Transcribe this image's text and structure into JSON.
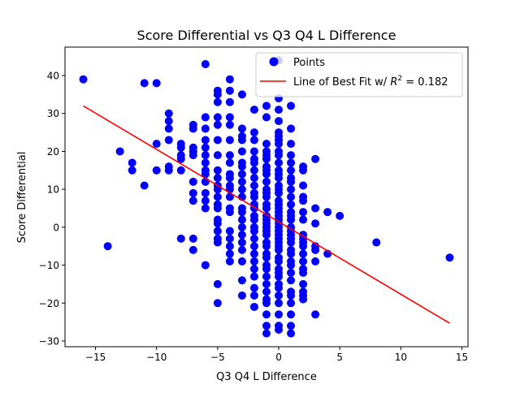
{
  "chart_data": {
    "type": "scatter",
    "title": "Score Differential vs Q3 Q4 L Difference",
    "xlabel": "Q3 Q4 L Difference",
    "ylabel": "Score Differential",
    "xlim": [
      -17.5,
      15.5
    ],
    "ylim": [
      -31.5,
      47.5
    ],
    "xticks": [
      -15,
      -10,
      -5,
      0,
      5,
      10,
      15
    ],
    "yticks": [
      -30,
      -20,
      -10,
      0,
      10,
      20,
      30,
      40
    ],
    "grid": false,
    "legend_position": "top-right",
    "legend": {
      "points_label": "Points",
      "line_label_prefix": "Line of Best Fit w/ ",
      "r2_symbol": "R",
      "r2_superscript": "2",
      "r2_suffix": " = 0.182"
    },
    "series": [
      {
        "name": "Points",
        "color": "#0000ff",
        "points": [
          [
            -16,
            39
          ],
          [
            -14,
            -5
          ],
          [
            -13,
            20
          ],
          [
            -12,
            17
          ],
          [
            -12,
            15
          ],
          [
            -11,
            38
          ],
          [
            -11,
            11
          ],
          [
            -10,
            38
          ],
          [
            -10,
            22
          ],
          [
            -10,
            15
          ],
          [
            -9,
            30
          ],
          [
            -9,
            28
          ],
          [
            -9,
            26
          ],
          [
            -9,
            23
          ],
          [
            -9,
            16
          ],
          [
            -9,
            15
          ],
          [
            -8,
            22
          ],
          [
            -8,
            21
          ],
          [
            -8,
            19
          ],
          [
            -8,
            18
          ],
          [
            -8,
            15
          ],
          [
            -8,
            -3
          ],
          [
            -7,
            27
          ],
          [
            -7,
            26
          ],
          [
            -7,
            21
          ],
          [
            -7,
            20
          ],
          [
            -7,
            19
          ],
          [
            -7,
            12
          ],
          [
            -7,
            9
          ],
          [
            -7,
            7
          ],
          [
            -7,
            -3
          ],
          [
            -7,
            -6
          ],
          [
            -6,
            43
          ],
          [
            -6,
            29
          ],
          [
            -6,
            26
          ],
          [
            -6,
            23
          ],
          [
            -6,
            21
          ],
          [
            -6,
            19
          ],
          [
            -6,
            17
          ],
          [
            -6,
            15
          ],
          [
            -6,
            14
          ],
          [
            -6,
            12
          ],
          [
            -6,
            9
          ],
          [
            -6,
            7
          ],
          [
            -6,
            5
          ],
          [
            -6,
            -10
          ],
          [
            -5,
            36
          ],
          [
            -5,
            35
          ],
          [
            -5,
            33
          ],
          [
            -5,
            29
          ],
          [
            -5,
            27
          ],
          [
            -5,
            23
          ],
          [
            -5,
            19
          ],
          [
            -5,
            15
          ],
          [
            -5,
            13
          ],
          [
            -5,
            11
          ],
          [
            -5,
            10
          ],
          [
            -5,
            8
          ],
          [
            -5,
            6
          ],
          [
            -5,
            5
          ],
          [
            -5,
            2
          ],
          [
            -5,
            1
          ],
          [
            -5,
            -1
          ],
          [
            -5,
            -3
          ],
          [
            -5,
            -4
          ],
          [
            -5,
            -15
          ],
          [
            -5,
            -20
          ],
          [
            -4,
            39
          ],
          [
            -4,
            36
          ],
          [
            -4,
            33
          ],
          [
            -4,
            29
          ],
          [
            -4,
            27
          ],
          [
            -4,
            23
          ],
          [
            -4,
            19
          ],
          [
            -4,
            17
          ],
          [
            -4,
            14
          ],
          [
            -4,
            13
          ],
          [
            -4,
            11
          ],
          [
            -4,
            10
          ],
          [
            -4,
            8
          ],
          [
            -4,
            5
          ],
          [
            -4,
            4
          ],
          [
            -4,
            -1
          ],
          [
            -4,
            -3
          ],
          [
            -4,
            -5
          ],
          [
            -4,
            -7
          ],
          [
            -4,
            -9
          ],
          [
            -3,
            35
          ],
          [
            -3,
            26
          ],
          [
            -3,
            24
          ],
          [
            -3,
            23
          ],
          [
            -3,
            20
          ],
          [
            -3,
            17
          ],
          [
            -3,
            16
          ],
          [
            -3,
            14
          ],
          [
            -3,
            12
          ],
          [
            -3,
            10
          ],
          [
            -3,
            8
          ],
          [
            -3,
            5
          ],
          [
            -3,
            4
          ],
          [
            -3,
            2
          ],
          [
            -3,
            0
          ],
          [
            -3,
            -2
          ],
          [
            -3,
            -4
          ],
          [
            -3,
            -6
          ],
          [
            -3,
            -9
          ],
          [
            -3,
            -14
          ],
          [
            -3,
            -18
          ],
          [
            -2,
            31
          ],
          [
            -2,
            25
          ],
          [
            -2,
            23
          ],
          [
            -2,
            20
          ],
          [
            -2,
            18
          ],
          [
            -2,
            17
          ],
          [
            -2,
            15
          ],
          [
            -2,
            13
          ],
          [
            -2,
            11
          ],
          [
            -2,
            9
          ],
          [
            -2,
            8
          ],
          [
            -2,
            6
          ],
          [
            -2,
            5
          ],
          [
            -2,
            3
          ],
          [
            -2,
            2
          ],
          [
            -2,
            0
          ],
          [
            -2,
            -1
          ],
          [
            -2,
            -3
          ],
          [
            -2,
            -5
          ],
          [
            -2,
            -7
          ],
          [
            -2,
            -9
          ],
          [
            -2,
            -11
          ],
          [
            -2,
            -13
          ],
          [
            -2,
            -16
          ],
          [
            -2,
            -18
          ],
          [
            -2,
            -21
          ],
          [
            -1,
            32
          ],
          [
            -1,
            29
          ],
          [
            -1,
            22
          ],
          [
            -1,
            20
          ],
          [
            -1,
            19
          ],
          [
            -1,
            18
          ],
          [
            -1,
            16
          ],
          [
            -1,
            15
          ],
          [
            -1,
            14
          ],
          [
            -1,
            12
          ],
          [
            -1,
            10
          ],
          [
            -1,
            9
          ],
          [
            -1,
            8
          ],
          [
            -1,
            6
          ],
          [
            -1,
            5
          ],
          [
            -1,
            3
          ],
          [
            -1,
            2
          ],
          [
            -1,
            1
          ],
          [
            -1,
            0
          ],
          [
            -1,
            -1
          ],
          [
            -1,
            -2
          ],
          [
            -1,
            -4
          ],
          [
            -1,
            -5
          ],
          [
            -1,
            -7
          ],
          [
            -1,
            -8
          ],
          [
            -1,
            -10
          ],
          [
            -1,
            -11
          ],
          [
            -1,
            -13
          ],
          [
            -1,
            -15
          ],
          [
            -1,
            -17
          ],
          [
            -1,
            -19
          ],
          [
            -1,
            -20
          ],
          [
            -1,
            -23
          ],
          [
            -1,
            -26
          ],
          [
            -1,
            -28
          ],
          [
            0,
            44
          ],
          [
            0,
            34
          ],
          [
            0,
            31
          ],
          [
            0,
            28
          ],
          [
            0,
            25
          ],
          [
            0,
            24
          ],
          [
            0,
            23
          ],
          [
            0,
            22
          ],
          [
            0,
            20
          ],
          [
            0,
            19
          ],
          [
            0,
            17
          ],
          [
            0,
            15
          ],
          [
            0,
            14
          ],
          [
            0,
            13
          ],
          [
            0,
            11
          ],
          [
            0,
            10
          ],
          [
            0,
            9
          ],
          [
            0,
            7
          ],
          [
            0,
            6
          ],
          [
            0,
            5
          ],
          [
            0,
            4
          ],
          [
            0,
            3
          ],
          [
            0,
            2
          ],
          [
            0,
            1
          ],
          [
            0,
            0
          ],
          [
            0,
            -1
          ],
          [
            0,
            -2
          ],
          [
            0,
            -3
          ],
          [
            0,
            -4
          ],
          [
            0,
            -5
          ],
          [
            0,
            -6
          ],
          [
            0,
            -8
          ],
          [
            0,
            -9
          ],
          [
            0,
            -11
          ],
          [
            0,
            -12
          ],
          [
            0,
            -13
          ],
          [
            0,
            -15
          ],
          [
            0,
            -16
          ],
          [
            0,
            -18
          ],
          [
            0,
            -20
          ],
          [
            0,
            -23
          ],
          [
            0,
            -26
          ],
          [
            0,
            -27
          ],
          [
            1,
            32
          ],
          [
            1,
            26
          ],
          [
            1,
            22
          ],
          [
            1,
            19
          ],
          [
            1,
            17
          ],
          [
            1,
            15
          ],
          [
            1,
            13
          ],
          [
            1,
            12
          ],
          [
            1,
            10
          ],
          [
            1,
            8
          ],
          [
            1,
            6
          ],
          [
            1,
            4
          ],
          [
            1,
            3
          ],
          [
            1,
            2
          ],
          [
            1,
            0
          ],
          [
            1,
            -1
          ],
          [
            1,
            -2
          ],
          [
            1,
            -3
          ],
          [
            1,
            -4
          ],
          [
            1,
            -6
          ],
          [
            1,
            -7
          ],
          [
            1,
            -9
          ],
          [
            1,
            -10
          ],
          [
            1,
            -12
          ],
          [
            1,
            -14
          ],
          [
            1,
            -17
          ],
          [
            1,
            -18
          ],
          [
            1,
            -20
          ],
          [
            1,
            -23
          ],
          [
            1,
            -26
          ],
          [
            1,
            -28
          ],
          [
            2,
            16
          ],
          [
            2,
            15
          ],
          [
            2,
            11
          ],
          [
            2,
            8
          ],
          [
            2,
            7
          ],
          [
            2,
            4
          ],
          [
            2,
            2
          ],
          [
            2,
            -2
          ],
          [
            2,
            -3
          ],
          [
            2,
            -4
          ],
          [
            2,
            -5
          ],
          [
            2,
            -7
          ],
          [
            2,
            -9
          ],
          [
            2,
            -11
          ],
          [
            2,
            -12
          ],
          [
            2,
            -15
          ],
          [
            2,
            -17
          ],
          [
            2,
            -18
          ],
          [
            2,
            -19
          ],
          [
            3,
            18
          ],
          [
            3,
            5
          ],
          [
            3,
            1
          ],
          [
            3,
            -5
          ],
          [
            3,
            -6
          ],
          [
            3,
            -9
          ],
          [
            3,
            -23
          ],
          [
            4,
            4
          ],
          [
            4,
            -7
          ],
          [
            5,
            3
          ],
          [
            8,
            -4
          ],
          [
            14,
            -8
          ]
        ]
      }
    ],
    "fit_line": {
      "name": "Line of Best Fit",
      "color": "#ff0000",
      "r2": 0.182,
      "x": [
        -16,
        14
      ],
      "y": [
        32.0,
        -25.3
      ]
    }
  }
}
